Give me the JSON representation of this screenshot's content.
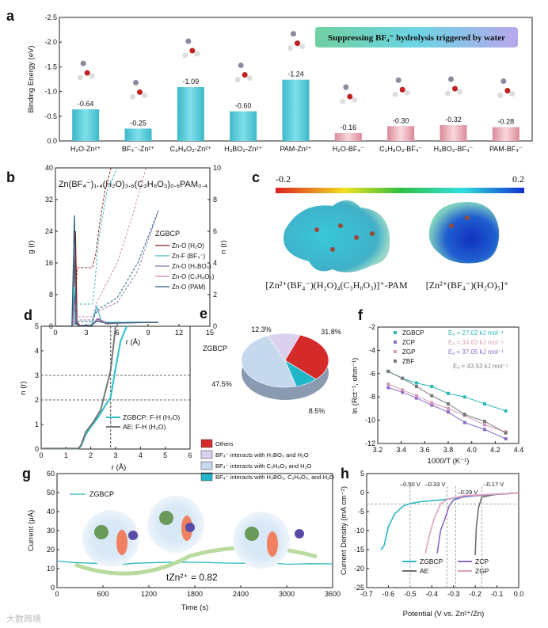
{
  "watermark": "大数跨境",
  "chart_data": [
    {
      "panel": "a",
      "type": "bar",
      "label": "a",
      "ylabel": "Binding Energy (eV)",
      "ylim": [
        0,
        -2.5
      ],
      "yticks": [
        "0.0",
        "-0.5",
        "-1.0",
        "-1.5",
        "-2.0",
        "-2.5"
      ],
      "categories": [
        "H₂O-Zn²⁺",
        "BF₄⁻-Zn²⁺",
        "C₃H₈O₃-Zn²⁺",
        "H₃BO₃-Zn²⁺",
        "PAM-Zn²⁺",
        "H₂O-BF₄⁻",
        "C₃H₈O₃-BF₄⁻",
        "H₃BO₃-BF₄⁻",
        "PAM-BF₄⁻"
      ],
      "values": [
        -0.64,
        -0.25,
        -1.09,
        -0.6,
        -1.24,
        -0.16,
        -0.3,
        -0.32,
        -0.28
      ],
      "value_labels": [
        "-0.64",
        "-0.25",
        "-1.09",
        "-0.60",
        "-1.24",
        "-0.16",
        "-0.30",
        "-0.32",
        "-0.28"
      ],
      "colors": [
        "#4fc6d3",
        "#4fc6d3",
        "#4fc6d3",
        "#4fc6d3",
        "#4fc6d3",
        "#e7a2ad",
        "#e7a2ad",
        "#e7a2ad",
        "#e7a2ad"
      ],
      "banner": "Suppressing BF₄⁻ hydrolysis triggered by water"
    },
    {
      "panel": "b",
      "type": "line",
      "label": "b",
      "title": "Zn(BF₄⁻)₁.₄(H₂O)₃.₆(C₃H₈O₃)₀.₆PAM₀.₄",
      "xlabel": "r (Å)",
      "ylabel": "g (r)",
      "y2label": "n (r)",
      "xlim": [
        0,
        15
      ],
      "ylim": [
        0,
        40
      ],
      "y2lim": [
        0,
        10
      ],
      "xticks": [
        "0",
        "3",
        "6",
        "9",
        "12",
        "15"
      ],
      "yticks": [
        "0",
        "8",
        "16",
        "24",
        "32",
        "40"
      ],
      "y2ticks": [
        "0",
        "2",
        "4",
        "6",
        "8",
        "10"
      ],
      "legend_title": "ZGBCP",
      "series": [
        {
          "name": "Zn-O (H₂O)",
          "color": "#8b1a1a",
          "x": [
            0,
            1.7,
            1.95,
            2.1,
            2.4,
            3.5,
            4.1,
            5,
            7,
            10
          ],
          "y": [
            0,
            0,
            24,
            1,
            0.2,
            0.3,
            1.8,
            0.6,
            1,
            1
          ],
          "nx": [
            1.9,
            2.1,
            3.6,
            3.9,
            4.3,
            4.8,
            5.4
          ],
          "ny": [
            0.2,
            3.7,
            3.7,
            4.5,
            6.5,
            8.5,
            10
          ]
        },
        {
          "name": "Zn-F (BF₄⁻)",
          "color": "#48b8c8",
          "x": [
            0,
            1.6,
            1.8,
            2.0,
            2.3,
            3.5,
            4.0,
            4.5,
            6,
            10
          ],
          "y": [
            0,
            0,
            10,
            0.5,
            0.1,
            0.3,
            5,
            1,
            1,
            1
          ],
          "nx": [
            1.8,
            2.1,
            3.6,
            3.8,
            4.2,
            5,
            6
          ],
          "ny": [
            0.1,
            1.4,
            1.4,
            2.5,
            5.5,
            8.5,
            10
          ]
        },
        {
          "name": "Zn-O (H₃BO₃)",
          "color": "#8a7bb0",
          "x": [
            0,
            1.7,
            1.9,
            2.1,
            3.5,
            4.1,
            5,
            10
          ],
          "y": [
            0,
            0,
            8,
            0.3,
            0.2,
            2,
            0.8,
            1
          ],
          "nx": [
            1.9,
            2.1,
            3.6,
            4.0,
            6,
            8,
            10
          ],
          "ny": [
            0.1,
            0.4,
            0.4,
            0.9,
            1.5,
            3.5,
            7.3
          ]
        },
        {
          "name": "Zn-O (C₃H₈O₃)",
          "color": "#d47fb0",
          "x": [
            0,
            1.7,
            1.9,
            2.1,
            3.5,
            4.1,
            5,
            10
          ],
          "y": [
            0,
            0,
            6,
            0.3,
            0.2,
            1.6,
            0.7,
            1
          ],
          "nx": [
            1.9,
            2.1,
            3.6,
            4.0,
            6,
            7.5,
            8.8
          ],
          "ny": [
            0.2,
            0.6,
            0.6,
            1.5,
            4,
            7,
            10
          ]
        },
        {
          "name": "Zn-O (PAM)",
          "color": "#1f5f7a",
          "x": [
            0,
            1.6,
            1.85,
            2.0,
            2.3,
            3.5,
            4.0,
            5,
            10
          ],
          "y": [
            0,
            0,
            28,
            1,
            0.1,
            0.2,
            1.3,
            0.8,
            1
          ],
          "nx": [
            1.9,
            2.1,
            3.6,
            4.0,
            6,
            8,
            10
          ],
          "ny": [
            0.1,
            0.3,
            0.3,
            1,
            1.8,
            4,
            7.3
          ]
        }
      ]
    },
    {
      "panel": "c",
      "type": "heatmap",
      "label": "c",
      "colorbar_min": "-0.2",
      "colorbar_max": "0.2",
      "molecules": [
        "[Zn²⁺(BF₄⁻)(H₂O)₄(C₃H₈O₃)]⁺-PAM",
        "[Zn²⁺(BF₄⁻)(H₂O)₅]⁺"
      ]
    },
    {
      "panel": "d",
      "type": "line",
      "label": "d",
      "xlabel": "r (Å)",
      "ylabel": "n (r)",
      "xlim": [
        0,
        6
      ],
      "ylim": [
        0,
        5
      ],
      "xticks": [
        "0",
        "1",
        "2",
        "3",
        "4",
        "5",
        "6"
      ],
      "yticks": [
        "0",
        "1",
        "2",
        "3",
        "4",
        "5"
      ],
      "vline": 2.8,
      "hlines": [
        2,
        3
      ],
      "series": [
        {
          "name": "ZGBCP: F-H (H₂O)",
          "color": "#2bbfc9",
          "x": [
            0,
            1.5,
            1.6,
            1.8,
            2.0,
            2.3,
            2.6,
            2.8,
            3.0,
            3.2,
            3.45
          ],
          "y": [
            0.02,
            0.02,
            0.1,
            0.6,
            0.9,
            1.3,
            1.8,
            2.1,
            3.3,
            4.4,
            5
          ]
        },
        {
          "name": "AE: F-H (H₂O)",
          "color": "#777777",
          "x": [
            0,
            1.5,
            1.6,
            1.8,
            2.1,
            2.4,
            2.6,
            2.8,
            3.0
          ],
          "y": [
            0.02,
            0.02,
            0.15,
            0.7,
            1.1,
            1.6,
            2.4,
            3.2,
            5
          ]
        }
      ]
    },
    {
      "panel": "e",
      "type": "pie",
      "label": "e",
      "title": "ZGBCP",
      "slices": [
        {
          "name": "Others",
          "value": 31.8,
          "label": "31.8%",
          "color": "#d42a2a"
        },
        {
          "name": "BF₄⁻ interacts with H₃BO₃, C₃H₈O₃, and H₂O",
          "value": 8.5,
          "label": "8.5%",
          "color": "#20b8c8"
        },
        {
          "name": "BF₄⁻ interacts with C₃H₈O₃ and H₂O",
          "value": 47.5,
          "label": "47.5%",
          "color": "#c5d8ee"
        },
        {
          "name": "BF₄⁻ interacts with H₃BO₃ and H₂O",
          "value": 12.3,
          "label": "12.3%",
          "color": "#dcd0ef"
        }
      ]
    },
    {
      "panel": "f",
      "type": "scatter",
      "label": "f",
      "xlabel": "1000/T (K⁻¹)",
      "ylabel": "ln (Rct⁻¹, ohm⁻¹)",
      "xlim": [
        3.2,
        4.4
      ],
      "ylim": [
        -12,
        -2
      ],
      "xticks": [
        "3.2",
        "3.4",
        "3.6",
        "3.8",
        "4.0",
        "4.2",
        "4.4"
      ],
      "yticks": [
        "-12",
        "-10",
        "-8",
        "-6",
        "-4",
        "-2"
      ],
      "x": [
        3.29,
        3.41,
        3.53,
        3.66,
        3.8,
        3.94,
        4.11,
        4.29
      ],
      "series": [
        {
          "name": "ZGBCP",
          "ea": "Eₐ = 27.02 kJ mol⁻¹",
          "color": "#2cb8b8",
          "y": [
            -5.8,
            -6.4,
            -6.8,
            -7.1,
            -7.7,
            -8.0,
            -8.6,
            -9.2
          ]
        },
        {
          "name": "ZCP",
          "ea": "Eₐ = 34.63 kJ mol⁻¹",
          "color": "#8a6cc4",
          "y": [
            -7.2,
            -7.6,
            -8.1,
            -8.7,
            -9.3,
            -10.2,
            -10.8,
            -11.6
          ]
        },
        {
          "name": "ZGP",
          "ea": "Eₐ = 37.05 kJ mol⁻¹",
          "color": "#d49ab8",
          "y": [
            -6.9,
            -7.4,
            -7.9,
            -8.5,
            -9.0,
            -9.6,
            -10.4,
            -11.0
          ]
        },
        {
          "name": "ZBF",
          "ea": "Eₐ = 43.53 kJ mol⁻¹",
          "color": "#777777",
          "y": [
            -5.8,
            -6.4,
            -7.1,
            -7.9,
            -8.6,
            -9.5,
            -10.1,
            -11.1
          ]
        }
      ],
      "ea_colors": [
        "#2cb8b8",
        "#d9a2b5",
        "#8a6cc4",
        "#888888"
      ]
    },
    {
      "panel": "g",
      "type": "line",
      "label": "g",
      "xlabel": "Time (s)",
      "ylabel": "Current (μA)",
      "xlim": [
        0,
        3600
      ],
      "ylim": [
        0,
        60
      ],
      "xticks": [
        "0",
        "600",
        "1200",
        "1800",
        "2400",
        "3000",
        "3600"
      ],
      "yticks": [
        "0",
        "10",
        "20",
        "30",
        "40",
        "50",
        "60"
      ],
      "annotation": "tZn²⁺ = 0.82",
      "series": [
        {
          "name": "ZGBCP",
          "color": "#2cb8c4",
          "x": [
            0,
            200,
            500,
            800,
            1000,
            1300,
            1600,
            1900,
            2200,
            2500,
            2800,
            3000,
            3300,
            3600
          ],
          "y": [
            14,
            13.2,
            12.8,
            12,
            12.8,
            13.2,
            13.4,
            13.3,
            12.9,
            12.8,
            13,
            12.3,
            12.6,
            12.5
          ]
        }
      ]
    },
    {
      "panel": "h",
      "type": "line",
      "label": "h",
      "xlabel": "Potential (V vs. Zn²⁺/Zn)",
      "ylabel": "Current Density (mA cm⁻²)",
      "xlim": [
        -0.7,
        0
      ],
      "ylim": [
        -25,
        5
      ],
      "xticks": [
        "-0.7",
        "-0.6",
        "-0.5",
        "-0.4",
        "-0.3",
        "-0.2",
        "-0.1",
        "0.0"
      ],
      "yticks": [
        "-25",
        "-20",
        "-15",
        "-10",
        "-5",
        "0",
        "5"
      ],
      "annotations": [
        {
          "x": -0.5,
          "label": "–0.50 V"
        },
        {
          "x": -0.33,
          "label": "–0.33 V"
        },
        {
          "x": -0.29,
          "label": "–0.29 V"
        },
        {
          "x": -0.17,
          "label": "–0.17 V"
        }
      ],
      "hline": -3,
      "series": [
        {
          "name": "ZGBCP",
          "color": "#2cb8c4",
          "x": [
            -0.635,
            -0.62,
            -0.6,
            -0.57,
            -0.53,
            -0.5,
            -0.45,
            -0.35,
            -0.2,
            0
          ],
          "y": [
            -15,
            -14,
            -9,
            -5.5,
            -3.5,
            -2.9,
            -2.4,
            -1.9,
            -0.8,
            -0.1
          ]
        },
        {
          "name": "ZCP",
          "color": "#8a6cc4",
          "x": [
            -0.375,
            -0.36,
            -0.34,
            -0.32,
            -0.3,
            -0.25,
            0
          ],
          "y": [
            -16,
            -10,
            -7,
            -3.5,
            -2,
            -1,
            -0.1
          ]
        },
        {
          "name": "AE",
          "color": "#6e6e6e",
          "x": [
            -0.2,
            -0.195,
            -0.185,
            -0.17,
            -0.1,
            0
          ],
          "y": [
            -16.5,
            -9,
            -4,
            -1.2,
            -0.4,
            -0.1
          ]
        },
        {
          "name": "ZGP",
          "color": "#e0a0c0",
          "x": [
            -0.43,
            -0.41,
            -0.39,
            -0.36,
            -0.33,
            -0.25,
            0
          ],
          "y": [
            -16,
            -11,
            -7,
            -3,
            -1.8,
            -0.8,
            -0.1
          ]
        }
      ]
    }
  ]
}
